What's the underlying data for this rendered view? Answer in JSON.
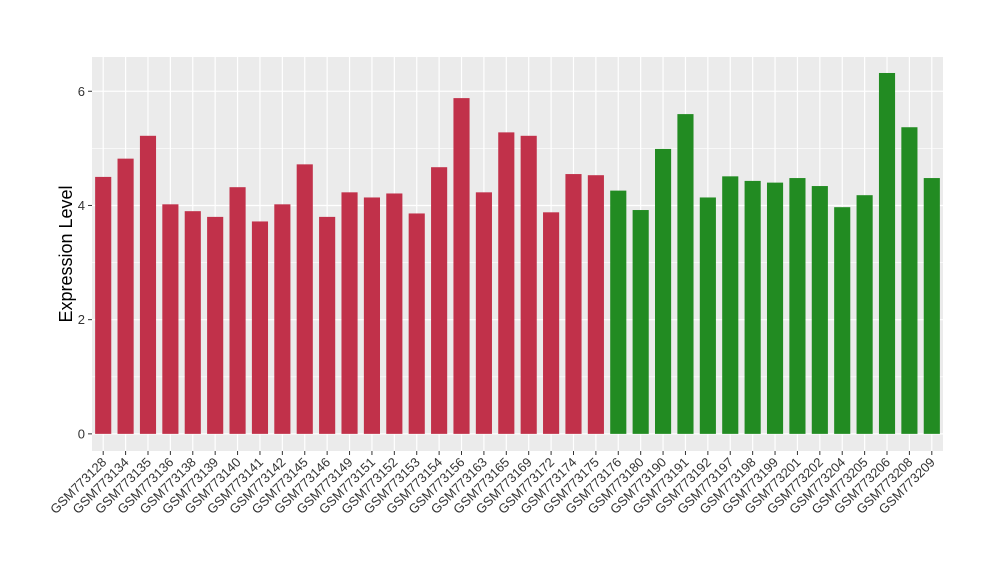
{
  "chart_data": {
    "type": "bar",
    "ylabel": "Expression Level",
    "xlabel": "",
    "ylim": [
      -0.3,
      6.6
    ],
    "yticks": [
      0,
      2,
      4,
      6
    ],
    "grid": true,
    "panel_background": "#ebebeb",
    "grid_color": "#ffffff",
    "categories": [
      "GSM773128",
      "GSM773134",
      "GSM773135",
      "GSM773136",
      "GSM773138",
      "GSM773139",
      "GSM773140",
      "GSM773141",
      "GSM773142",
      "GSM773145",
      "GSM773146",
      "GSM773149",
      "GSM773151",
      "GSM773152",
      "GSM773153",
      "GSM773154",
      "GSM773156",
      "GSM773163",
      "GSM773165",
      "GSM773169",
      "GSM773172",
      "GSM773174",
      "GSM773175",
      "GSM773176",
      "GSM773180",
      "GSM773190",
      "GSM773191",
      "GSM773192",
      "GSM773197",
      "GSM773198",
      "GSM773199",
      "GSM773201",
      "GSM773202",
      "GSM773204",
      "GSM773205",
      "GSM773206",
      "GSM773208",
      "GSM773209"
    ],
    "values": [
      4.5,
      4.82,
      5.22,
      4.02,
      3.9,
      3.8,
      4.32,
      3.72,
      4.02,
      4.72,
      3.8,
      4.23,
      4.14,
      4.21,
      3.86,
      4.67,
      5.88,
      4.23,
      5.28,
      5.22,
      3.88,
      4.55,
      4.53,
      4.26,
      3.92,
      4.99,
      5.6,
      4.14,
      4.51,
      4.43,
      4.4,
      4.48,
      4.34,
      3.97,
      4.18,
      6.32,
      5.37,
      4.48
    ],
    "group_colors": [
      "#c1314a",
      "#c1314a",
      "#c1314a",
      "#c1314a",
      "#c1314a",
      "#c1314a",
      "#c1314a",
      "#c1314a",
      "#c1314a",
      "#c1314a",
      "#c1314a",
      "#c1314a",
      "#c1314a",
      "#c1314a",
      "#c1314a",
      "#c1314a",
      "#c1314a",
      "#c1314a",
      "#c1314a",
      "#c1314a",
      "#c1314a",
      "#c1314a",
      "#c1314a",
      "#228b22",
      "#228b22",
      "#228b22",
      "#228b22",
      "#228b22",
      "#228b22",
      "#228b22",
      "#228b22",
      "#228b22",
      "#228b22",
      "#228b22",
      "#228b22",
      "#228b22",
      "#228b22",
      "#228b22"
    ]
  }
}
